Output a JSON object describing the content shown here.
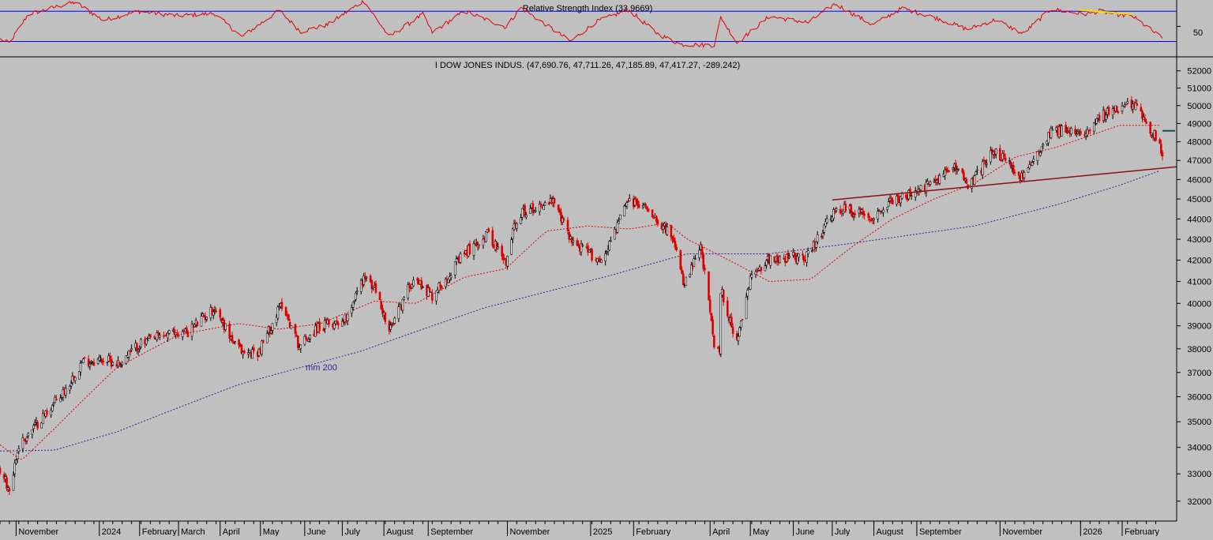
{
  "rsi_panel": {
    "title": "Relative Strength Index (33.9669)",
    "level_label": "50",
    "colors": {
      "line": "#e00000",
      "bands": "#0000ff",
      "trendline": "#f0e000"
    }
  },
  "price_panel": {
    "title": "I DOW JONES INDUS. (47,690.76, 47,711.26, 47,185.89, 47,417.27, -289.242)",
    "ma200_label": "mm 200",
    "colors": {
      "up_candle": "#000000",
      "down_candle": "#e00000",
      "ma200": "#3a1a90",
      "ma_fast": "#e00000",
      "trendline": "#8b1010",
      "marker": "#1a4a50"
    }
  },
  "chart_data": [
    {
      "type": "line",
      "title": "Relative Strength Index (33.9669)",
      "current_value": 33.9669,
      "reference_levels": [
        30,
        50,
        70
      ],
      "ylim": [
        20,
        85
      ],
      "tick_labels": [
        "50"
      ],
      "x_range": [
        "2023-10-20",
        "2026-03-04"
      ],
      "trendline": {
        "from": [
          "2025-12-31",
          72
        ],
        "to": [
          "2026-02-10",
          66
        ]
      },
      "keypoints": [
        [
          "2023-10-20",
          33
        ],
        [
          "2023-10-27",
          28
        ],
        [
          "2023-11-10",
          66
        ],
        [
          "2023-12-01",
          76
        ],
        [
          "2023-12-15",
          82
        ],
        [
          "2024-01-05",
          58
        ],
        [
          "2024-01-31",
          70
        ],
        [
          "2024-02-29",
          64
        ],
        [
          "2024-03-28",
          67
        ],
        [
          "2024-04-17",
          36
        ],
        [
          "2024-05-15",
          71
        ],
        [
          "2024-05-31",
          43
        ],
        [
          "2024-06-20",
          52
        ],
        [
          "2024-07-17",
          84
        ],
        [
          "2024-08-05",
          36
        ],
        [
          "2024-08-30",
          66
        ],
        [
          "2024-09-06",
          42
        ],
        [
          "2024-09-30",
          70
        ],
        [
          "2024-10-31",
          49
        ],
        [
          "2024-11-11",
          75
        ],
        [
          "2024-12-18",
          30
        ],
        [
          "2025-01-06",
          56
        ],
        [
          "2025-01-30",
          72
        ],
        [
          "2025-02-21",
          40
        ],
        [
          "2025-03-10",
          26
        ],
        [
          "2025-04-04",
          25
        ],
        [
          "2025-04-09",
          62
        ],
        [
          "2025-04-21",
          28
        ],
        [
          "2025-05-15",
          63
        ],
        [
          "2025-06-13",
          55
        ],
        [
          "2025-07-03",
          80
        ],
        [
          "2025-07-31",
          52
        ],
        [
          "2025-08-22",
          74
        ],
        [
          "2025-09-15",
          62
        ],
        [
          "2025-10-10",
          46
        ],
        [
          "2025-10-31",
          59
        ],
        [
          "2025-11-20",
          40
        ],
        [
          "2025-12-11",
          73
        ],
        [
          "2026-01-05",
          66
        ],
        [
          "2026-01-16",
          70
        ],
        [
          "2026-02-05",
          64
        ],
        [
          "2026-02-10",
          63
        ],
        [
          "2026-02-20",
          50
        ],
        [
          "2026-03-04",
          33.97
        ]
      ]
    },
    {
      "type": "candlestick",
      "title": "I DOW JONES INDUS. (47,690.76, 47,711.26, 47,185.89, 47,417.27, -289.242)",
      "last_bar": {
        "open": 47690.76,
        "high": 47711.26,
        "low": 47185.89,
        "close": 47417.27,
        "change": -289.242
      },
      "ylim": [
        31400,
        52500
      ],
      "y_scale": "log",
      "y_ticks": [
        32000,
        33000,
        34000,
        35000,
        36000,
        37000,
        38000,
        39000,
        40000,
        41000,
        42000,
        43000,
        44000,
        45000,
        46000,
        47000,
        48000,
        49000,
        50000,
        51000,
        52000
      ],
      "x_range": [
        "2023-10-20",
        "2026-03-04"
      ],
      "x_tick_labels": [
        [
          "2023-11-01",
          "November"
        ],
        [
          "2024-01-02",
          "2024"
        ],
        [
          "2024-02-01",
          "February"
        ],
        [
          "2024-03-01",
          "March"
        ],
        [
          "2024-04-01",
          "April"
        ],
        [
          "2024-05-01",
          "May"
        ],
        [
          "2024-06-03",
          "June"
        ],
        [
          "2024-07-01",
          "July"
        ],
        [
          "2024-08-01",
          "August"
        ],
        [
          "2024-09-03",
          "September"
        ],
        [
          "2024-11-01",
          "November"
        ],
        [
          "2025-01-02",
          "2025"
        ],
        [
          "2025-02-03",
          "February"
        ],
        [
          "2025-04-01",
          "April"
        ],
        [
          "2025-05-01",
          "May"
        ],
        [
          "2025-06-02",
          "June"
        ],
        [
          "2025-07-01",
          "July"
        ],
        [
          "2025-08-01",
          "August"
        ],
        [
          "2025-09-02",
          "September"
        ],
        [
          "2025-11-03",
          "November"
        ],
        [
          "2026-01-02",
          "2026"
        ],
        [
          "2026-02-02",
          "February"
        ]
      ],
      "close_keypoints": [
        [
          "2023-10-20",
          33150
        ],
        [
          "2023-10-27",
          32420
        ],
        [
          "2023-11-03",
          34060
        ],
        [
          "2023-11-24",
          35400
        ],
        [
          "2023-12-08",
          36300
        ],
        [
          "2023-12-20",
          37450
        ],
        [
          "2024-01-05",
          37550
        ],
        [
          "2024-01-17",
          37380
        ],
        [
          "2024-01-31",
          38160
        ],
        [
          "2024-02-20",
          38600
        ],
        [
          "2024-03-08",
          38750
        ],
        [
          "2024-03-28",
          39800
        ],
        [
          "2024-04-12",
          38150
        ],
        [
          "2024-04-19",
          37800
        ],
        [
          "2024-04-30",
          37900
        ],
        [
          "2024-05-17",
          40000
        ],
        [
          "2024-05-30",
          38120
        ],
        [
          "2024-06-12",
          38900
        ],
        [
          "2024-07-03",
          39300
        ],
        [
          "2024-07-17",
          41200
        ],
        [
          "2024-07-26",
          40600
        ],
        [
          "2024-08-05",
          38700
        ],
        [
          "2024-08-23",
          41200
        ],
        [
          "2024-09-06",
          40350
        ],
        [
          "2024-09-30",
          42300
        ],
        [
          "2024-10-18",
          43300
        ],
        [
          "2024-10-31",
          41760
        ],
        [
          "2024-11-06",
          43730
        ],
        [
          "2024-11-11",
          44300
        ],
        [
          "2024-12-04",
          44900
        ],
        [
          "2024-12-20",
          42850
        ],
        [
          "2025-01-10",
          41940
        ],
        [
          "2025-01-30",
          44900
        ],
        [
          "2025-02-14",
          44550
        ],
        [
          "2025-03-03",
          43200
        ],
        [
          "2025-03-13",
          40810
        ],
        [
          "2025-03-25",
          42600
        ],
        [
          "2025-04-04",
          38300
        ],
        [
          "2025-04-08",
          37650
        ],
        [
          "2025-04-09",
          40600
        ],
        [
          "2025-04-21",
          38200
        ],
        [
          "2025-05-02",
          41300
        ],
        [
          "2025-05-14",
          42050
        ],
        [
          "2025-06-13",
          42200
        ],
        [
          "2025-06-30",
          44100
        ],
        [
          "2025-07-08",
          44500
        ],
        [
          "2025-07-31",
          44130
        ],
        [
          "2025-08-14",
          44900
        ],
        [
          "2025-09-02",
          45300
        ],
        [
          "2025-10-03",
          46800
        ],
        [
          "2025-10-10",
          45500
        ],
        [
          "2025-10-29",
          47600
        ],
        [
          "2025-11-20",
          46000
        ],
        [
          "2025-12-11",
          48700
        ],
        [
          "2026-01-02",
          48400
        ],
        [
          "2026-01-16",
          49400
        ],
        [
          "2026-02-10",
          50100
        ],
        [
          "2026-02-17",
          49500
        ],
        [
          "2026-02-27",
          48200
        ],
        [
          "2026-03-04",
          47417.27
        ]
      ],
      "series": [
        {
          "name": "mm 200",
          "keypoints": [
            [
              "2023-10-20",
              33860
            ],
            [
              "2023-11-30",
              33900
            ],
            [
              "2024-01-15",
              34600
            ],
            [
              "2024-04-15",
              36500
            ],
            [
              "2024-07-15",
              37900
            ],
            [
              "2024-10-15",
              39800
            ],
            [
              "2025-01-15",
              41250
            ],
            [
              "2025-03-15",
              42300
            ],
            [
              "2025-05-15",
              42300
            ],
            [
              "2025-07-15",
              42800
            ],
            [
              "2025-10-15",
              43650
            ],
            [
              "2025-12-15",
              44700
            ],
            [
              "2026-01-31",
              45700
            ],
            [
              "2026-03-04",
              46500
            ]
          ]
        },
        {
          "name": "",
          "keypoints": [
            [
              "2023-10-20",
              34100
            ],
            [
              "2023-11-05",
              33500
            ],
            [
              "2023-12-01",
              34800
            ],
            [
              "2024-01-15",
              37200
            ],
            [
              "2024-03-01",
              38600
            ],
            [
              "2024-04-15",
              39100
            ],
            [
              "2024-05-15",
              38850
            ],
            [
              "2024-06-15",
              39100
            ],
            [
              "2024-07-25",
              40100
            ],
            [
              "2024-08-25",
              40000
            ],
            [
              "2024-09-30",
              41200
            ],
            [
              "2024-10-31",
              41600
            ],
            [
              "2024-11-30",
              43400
            ],
            [
              "2024-12-31",
              43650
            ],
            [
              "2025-01-31",
              43500
            ],
            [
              "2025-02-28",
              43800
            ],
            [
              "2025-03-15",
              43000
            ],
            [
              "2025-04-15",
              42000
            ],
            [
              "2025-05-15",
              41000
            ],
            [
              "2025-06-15",
              41100
            ],
            [
              "2025-07-15",
              42600
            ],
            [
              "2025-08-15",
              44000
            ],
            [
              "2025-09-15",
              45000
            ],
            [
              "2025-10-15",
              45800
            ],
            [
              "2025-11-15",
              47200
            ],
            [
              "2025-12-15",
              47700
            ],
            [
              "2026-01-31",
              48900
            ],
            [
              "2026-03-04",
              48900
            ]
          ]
        }
      ],
      "trendlines": [
        {
          "from": [
            "2025-07-01",
            44950
          ],
          "to": [
            "2026-03-04",
            46580
          ]
        }
      ],
      "markers": [
        {
          "date": "2026-03-04",
          "value": 48600
        }
      ]
    }
  ]
}
